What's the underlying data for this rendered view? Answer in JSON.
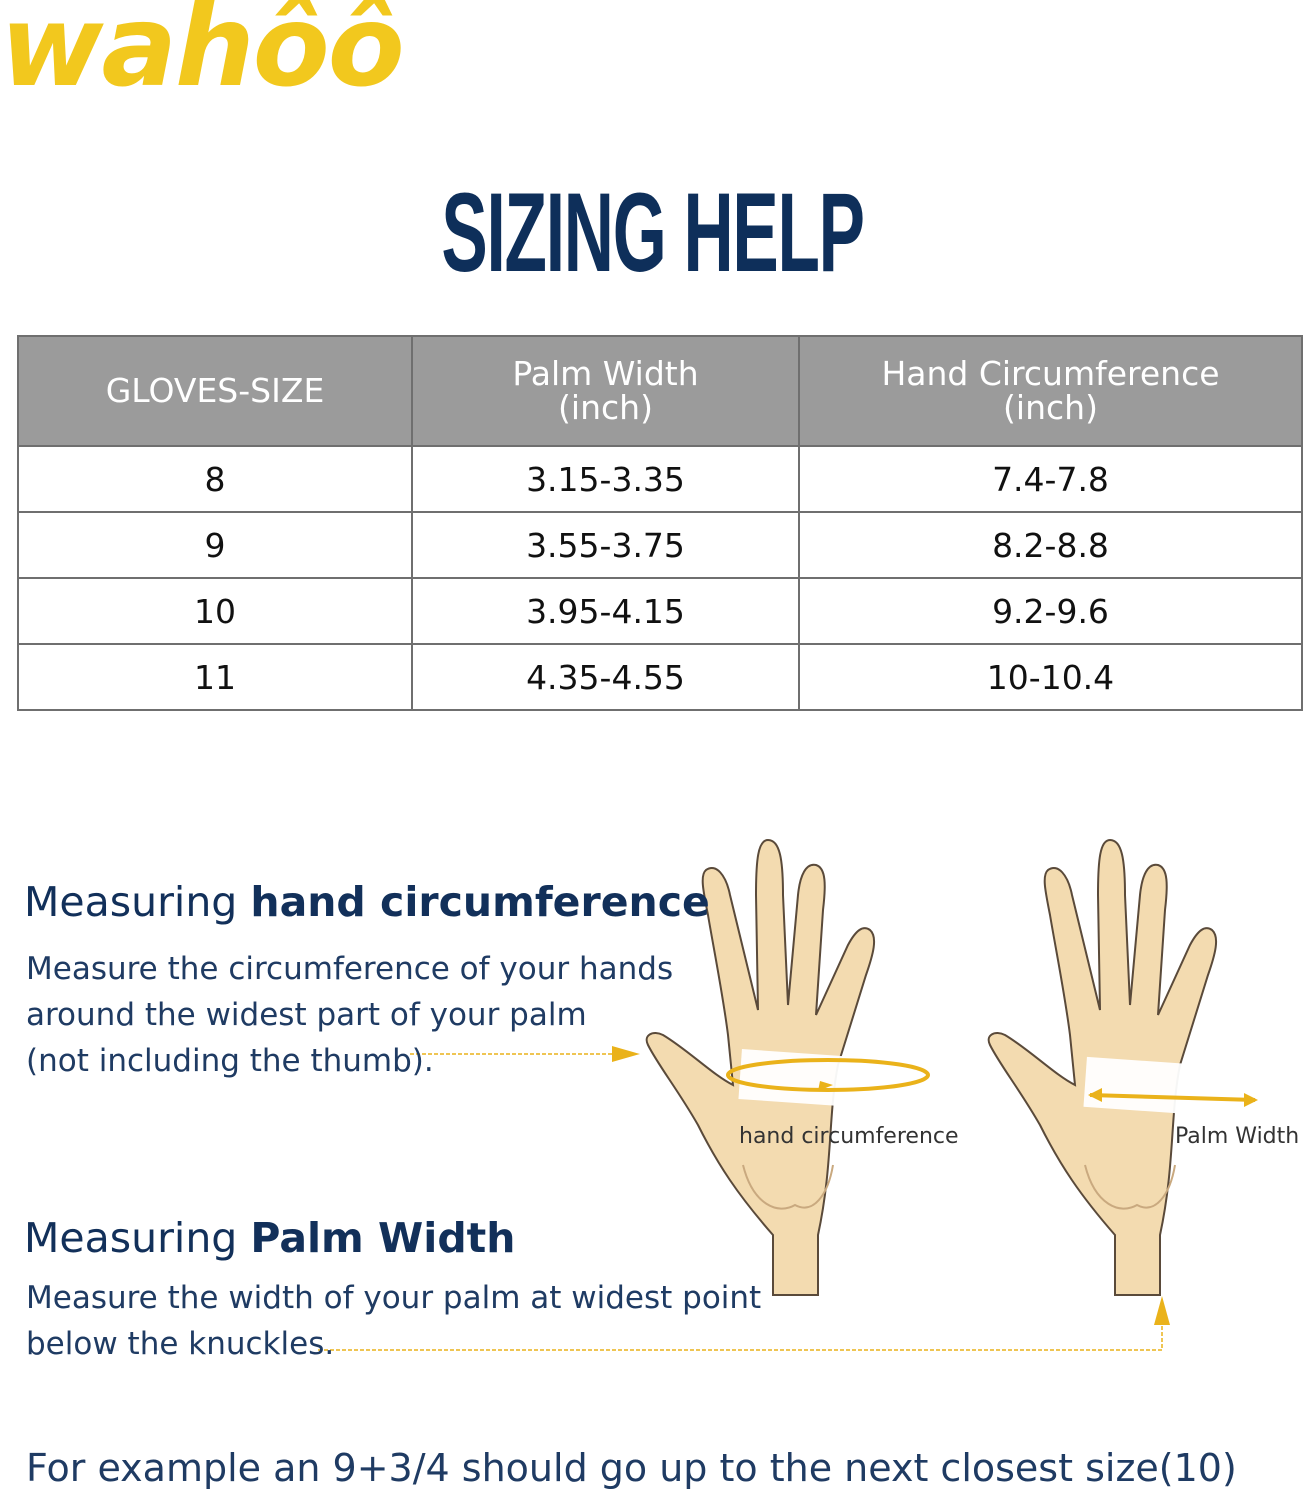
{
  "logo": "wahôô",
  "title": "SIZING HELP",
  "table": {
    "headers": [
      [
        "GLOVES-SIZE",
        ""
      ],
      [
        "Palm Width",
        "(inch)"
      ],
      [
        "Hand Circumference",
        "(inch)"
      ]
    ],
    "rows": [
      [
        "8",
        "3.15-3.35",
        "7.4-7.8"
      ],
      [
        "9",
        "3.55-3.75",
        "8.2-8.8"
      ],
      [
        "10",
        "3.95-4.15",
        "9.2-9.6"
      ],
      [
        "11",
        "4.35-4.55",
        "10-10.4"
      ]
    ]
  },
  "circumference": {
    "heading_pre": "Measuring ",
    "heading_bold": "hand circumference",
    "lines": [
      "Measure the circumference of your hands",
      "around the widest part of your palm",
      "(not including the thumb)."
    ],
    "diagram_label": "hand circumference"
  },
  "palm": {
    "heading_pre": "Measuring ",
    "heading_bold": "Palm Width",
    "lines": [
      "Measure the width of your palm at widest point",
      "below the knuckles."
    ],
    "diagram_label": "Palm Width"
  },
  "footnote": "For example an 9+3/4 should go up to the next closest size(10)",
  "colors": {
    "brand_yellow": "#f2c81e",
    "navy": "#0e2f5a",
    "header_gray": "#9b9b9b",
    "skin": "#f3dbb0"
  }
}
